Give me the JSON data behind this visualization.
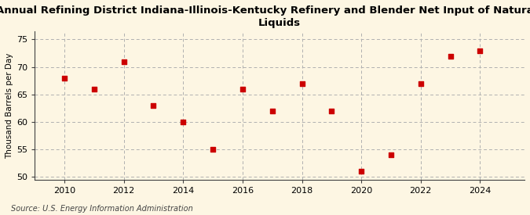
{
  "title": "Annual Refining District Indiana-Illinois-Kentucky Refinery and Blender Net Input of Natural Gas\nLiquids",
  "ylabel": "Thousand Barrels per Day",
  "source": "Source: U.S. Energy Information Administration",
  "years": [
    2010,
    2011,
    2012,
    2013,
    2014,
    2015,
    2016,
    2017,
    2018,
    2019,
    2020,
    2021,
    2022,
    2023,
    2024
  ],
  "values": [
    68,
    66,
    71,
    63,
    60,
    55,
    66,
    62,
    67,
    62,
    51,
    54,
    67,
    72,
    73
  ],
  "marker_color": "#cc0000",
  "bg_color": "#fdf6e3",
  "grid_color": "#b0b0b0",
  "spine_color": "#404040",
  "ylim": [
    49.5,
    76.5
  ],
  "yticks": [
    50,
    55,
    60,
    65,
    70,
    75
  ],
  "xlim": [
    2009.0,
    2025.5
  ],
  "xticks": [
    2010,
    2012,
    2014,
    2016,
    2018,
    2020,
    2022,
    2024
  ],
  "title_fontsize": 9.5,
  "axis_fontsize": 8,
  "ylabel_fontsize": 7.5,
  "source_fontsize": 7
}
